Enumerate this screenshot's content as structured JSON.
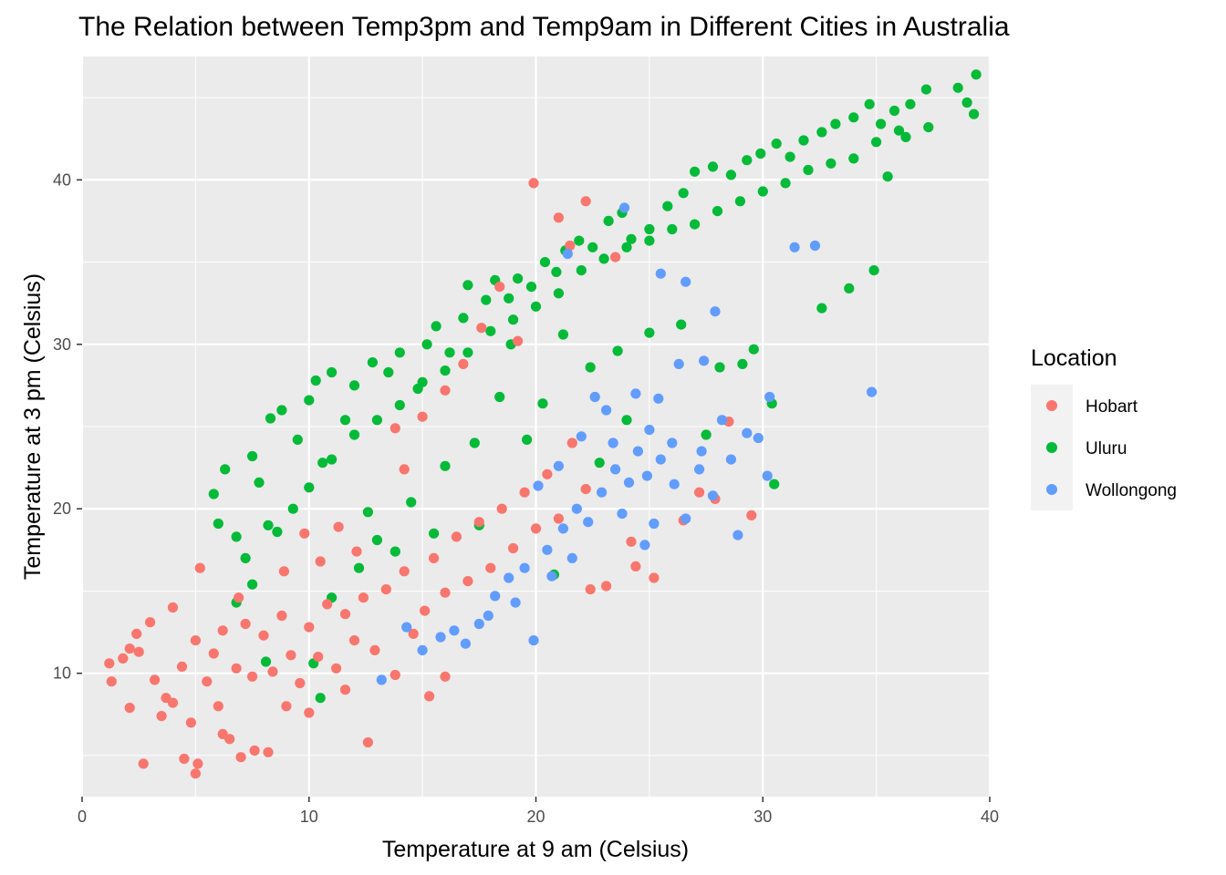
{
  "chart_data": {
    "type": "scatter",
    "title": "The Relation between Temp3pm and Temp9am in Different Cities in Australia",
    "xlabel": "Temperature at 9 am (Celsius)",
    "ylabel": "Temperature at 3 pm (Celsius)",
    "xlim": [
      0,
      40
    ],
    "ylim": [
      2.5,
      47.5
    ],
    "x_ticks": [
      0,
      10,
      20,
      30,
      40
    ],
    "x_tick_labels": [
      "0",
      "10",
      "20",
      "30",
      "40"
    ],
    "y_ticks": [
      10,
      20,
      30,
      40
    ],
    "y_tick_labels": [
      "10",
      "20",
      "30",
      "40"
    ],
    "grid": true,
    "legend_position": "right",
    "legend_title": "Location",
    "series": [
      {
        "name": "Hobart",
        "color": "#F8766D",
        "points": [
          [
            1.2,
            10.6
          ],
          [
            1.3,
            9.5
          ],
          [
            1.8,
            10.9
          ],
          [
            2.1,
            11.5
          ],
          [
            2.1,
            7.9
          ],
          [
            2.7,
            4.5
          ],
          [
            3.5,
            7.4
          ],
          [
            4.0,
            8.2
          ],
          [
            4.0,
            14.0
          ],
          [
            4.5,
            4.8
          ],
          [
            5.0,
            3.9
          ],
          [
            5.1,
            4.5
          ],
          [
            4.8,
            7.0
          ],
          [
            5.2,
            16.4
          ],
          [
            5.5,
            9.5
          ],
          [
            6.0,
            8.0
          ],
          [
            6.5,
            6.0
          ],
          [
            7.0,
            4.9
          ],
          [
            7.6,
            5.3
          ],
          [
            8.2,
            5.2
          ],
          [
            6.2,
            12.6
          ],
          [
            5.8,
            11.2
          ],
          [
            6.8,
            10.3
          ],
          [
            7.2,
            13.0
          ],
          [
            7.5,
            9.8
          ],
          [
            8.0,
            12.3
          ],
          [
            8.4,
            10.1
          ],
          [
            8.8,
            13.5
          ],
          [
            9.2,
            11.1
          ],
          [
            9.6,
            9.4
          ],
          [
            10.0,
            12.8
          ],
          [
            10.4,
            11.0
          ],
          [
            10.8,
            14.2
          ],
          [
            11.2,
            10.3
          ],
          [
            11.6,
            13.6
          ],
          [
            12.0,
            12.0
          ],
          [
            12.4,
            14.6
          ],
          [
            12.9,
            11.4
          ],
          [
            13.4,
            15.1
          ],
          [
            13.8,
            9.9
          ],
          [
            14.2,
            16.2
          ],
          [
            14.6,
            12.4
          ],
          [
            15.1,
            13.8
          ],
          [
            15.5,
            17.0
          ],
          [
            16.0,
            14.9
          ],
          [
            16.5,
            18.3
          ],
          [
            17.0,
            15.6
          ],
          [
            17.5,
            19.2
          ],
          [
            18.0,
            16.4
          ],
          [
            18.5,
            20.0
          ],
          [
            19.0,
            17.6
          ],
          [
            19.5,
            21.0
          ],
          [
            20.0,
            18.8
          ],
          [
            20.5,
            22.1
          ],
          [
            21.0,
            19.4
          ],
          [
            21.6,
            24.0
          ],
          [
            22.2,
            21.2
          ],
          [
            13.8,
            24.9
          ],
          [
            14.2,
            22.4
          ],
          [
            15.0,
            25.6
          ],
          [
            16.0,
            27.2
          ],
          [
            16.8,
            28.8
          ],
          [
            17.6,
            31.0
          ],
          [
            18.4,
            33.5
          ],
          [
            19.2,
            30.2
          ],
          [
            19.9,
            39.8
          ],
          [
            21.0,
            37.7
          ],
          [
            22.2,
            38.7
          ],
          [
            21.5,
            36.0
          ],
          [
            23.5,
            35.3
          ],
          [
            15.3,
            8.6
          ],
          [
            16.0,
            9.8
          ],
          [
            12.6,
            5.8
          ],
          [
            10.0,
            7.6
          ],
          [
            11.6,
            9.0
          ],
          [
            9.0,
            8.0
          ],
          [
            6.2,
            6.3
          ],
          [
            3.7,
            8.5
          ],
          [
            2.5,
            11.3
          ],
          [
            3.0,
            13.1
          ],
          [
            22.4,
            15.1
          ],
          [
            23.1,
            15.3
          ],
          [
            24.2,
            18.0
          ],
          [
            24.4,
            16.5
          ],
          [
            25.2,
            15.8
          ],
          [
            27.9,
            20.6
          ],
          [
            28.5,
            25.3
          ],
          [
            29.5,
            19.6
          ],
          [
            26.5,
            19.3
          ],
          [
            27.2,
            21.0
          ],
          [
            8.9,
            16.2
          ],
          [
            9.8,
            18.5
          ],
          [
            10.5,
            16.8
          ],
          [
            11.3,
            18.9
          ],
          [
            12.1,
            17.4
          ],
          [
            6.9,
            14.6
          ],
          [
            5.0,
            12.0
          ],
          [
            4.4,
            10.4
          ],
          [
            3.2,
            9.6
          ],
          [
            2.4,
            12.4
          ]
        ]
      },
      {
        "name": "Uluru",
        "color": "#00BA38",
        "points": [
          [
            5.8,
            20.9
          ],
          [
            6.0,
            19.1
          ],
          [
            6.3,
            22.4
          ],
          [
            6.8,
            18.3
          ],
          [
            7.5,
            23.2
          ],
          [
            7.8,
            21.6
          ],
          [
            8.2,
            19.0
          ],
          [
            8.3,
            25.5
          ],
          [
            8.8,
            26.0
          ],
          [
            9.5,
            24.2
          ],
          [
            10.0,
            26.6
          ],
          [
            10.3,
            27.8
          ],
          [
            10.6,
            22.8
          ],
          [
            11.0,
            28.3
          ],
          [
            11.6,
            25.4
          ],
          [
            12.0,
            27.5
          ],
          [
            12.8,
            28.9
          ],
          [
            13.5,
            28.3
          ],
          [
            14.0,
            29.5
          ],
          [
            14.8,
            27.3
          ],
          [
            15.2,
            30.0
          ],
          [
            15.6,
            31.1
          ],
          [
            16.2,
            29.5
          ],
          [
            16.8,
            31.6
          ],
          [
            17.0,
            33.6
          ],
          [
            17.8,
            32.7
          ],
          [
            18.2,
            33.9
          ],
          [
            18.8,
            32.8
          ],
          [
            19.2,
            34.0
          ],
          [
            19.8,
            33.5
          ],
          [
            20.4,
            35.0
          ],
          [
            20.9,
            34.4
          ],
          [
            21.3,
            35.7
          ],
          [
            21.9,
            36.3
          ],
          [
            22.5,
            35.9
          ],
          [
            23.2,
            37.5
          ],
          [
            23.8,
            38.0
          ],
          [
            24.2,
            36.4
          ],
          [
            25.0,
            37.0
          ],
          [
            25.8,
            38.4
          ],
          [
            26.5,
            39.2
          ],
          [
            27.0,
            40.5
          ],
          [
            27.8,
            40.8
          ],
          [
            28.6,
            40.3
          ],
          [
            29.3,
            41.2
          ],
          [
            29.9,
            41.6
          ],
          [
            30.6,
            42.2
          ],
          [
            31.2,
            41.4
          ],
          [
            31.8,
            42.4
          ],
          [
            32.6,
            42.9
          ],
          [
            33.2,
            43.4
          ],
          [
            34.0,
            43.8
          ],
          [
            34.7,
            44.6
          ],
          [
            35.2,
            43.4
          ],
          [
            35.8,
            44.2
          ],
          [
            36.5,
            44.6
          ],
          [
            37.2,
            45.5
          ],
          [
            38.6,
            45.6
          ],
          [
            39.0,
            44.7
          ],
          [
            39.4,
            46.4
          ],
          [
            39.3,
            44.0
          ],
          [
            37.3,
            43.2
          ],
          [
            36.3,
            42.6
          ],
          [
            35.5,
            40.2
          ],
          [
            34.9,
            34.5
          ],
          [
            33.8,
            33.4
          ],
          [
            32.6,
            32.2
          ],
          [
            30.4,
            26.4
          ],
          [
            30.5,
            21.5
          ],
          [
            29.1,
            28.8
          ],
          [
            28.1,
            28.6
          ],
          [
            29.6,
            29.7
          ],
          [
            27.5,
            24.5
          ],
          [
            26.4,
            31.2
          ],
          [
            25.0,
            30.7
          ],
          [
            23.6,
            29.6
          ],
          [
            22.4,
            28.6
          ],
          [
            20.3,
            26.4
          ],
          [
            18.4,
            26.8
          ],
          [
            17.3,
            24.0
          ],
          [
            16.0,
            22.6
          ],
          [
            14.5,
            20.4
          ],
          [
            13.0,
            18.1
          ],
          [
            12.2,
            16.4
          ],
          [
            11.0,
            14.6
          ],
          [
            10.2,
            10.6
          ],
          [
            8.1,
            10.7
          ],
          [
            10.5,
            8.5
          ],
          [
            7.5,
            15.4
          ],
          [
            6.8,
            14.3
          ],
          [
            7.2,
            17.0
          ],
          [
            8.6,
            18.6
          ],
          [
            9.3,
            20.0
          ],
          [
            10.0,
            21.3
          ],
          [
            11.0,
            23.0
          ],
          [
            12.0,
            24.5
          ],
          [
            13.0,
            25.4
          ],
          [
            14.0,
            26.3
          ],
          [
            15.0,
            27.7
          ],
          [
            16.0,
            28.4
          ],
          [
            17.0,
            29.5
          ],
          [
            18.0,
            30.8
          ],
          [
            19.0,
            31.5
          ],
          [
            20.0,
            32.3
          ],
          [
            21.0,
            33.1
          ],
          [
            22.0,
            34.5
          ],
          [
            23.0,
            35.2
          ],
          [
            24.0,
            35.9
          ],
          [
            25.0,
            36.3
          ],
          [
            26.0,
            37.0
          ],
          [
            27.0,
            37.3
          ],
          [
            28.0,
            38.1
          ],
          [
            29.0,
            38.7
          ],
          [
            30.0,
            39.3
          ],
          [
            31.0,
            39.8
          ],
          [
            32.0,
            40.6
          ],
          [
            33.0,
            41.0
          ],
          [
            34.0,
            41.3
          ],
          [
            35.0,
            42.3
          ],
          [
            36.0,
            43.0
          ],
          [
            20.8,
            16.0
          ],
          [
            24.0,
            25.4
          ],
          [
            22.8,
            22.8
          ],
          [
            19.6,
            24.2
          ],
          [
            17.5,
            19.0
          ],
          [
            15.5,
            18.5
          ],
          [
            13.8,
            17.4
          ],
          [
            12.6,
            19.8
          ],
          [
            21.2,
            30.6
          ],
          [
            18.9,
            30.0
          ]
        ]
      },
      {
        "name": "Wollongong",
        "color": "#619CFF",
        "points": [
          [
            13.2,
            9.6
          ],
          [
            14.3,
            12.8
          ],
          [
            15.0,
            11.4
          ],
          [
            16.4,
            12.6
          ],
          [
            17.5,
            13.0
          ],
          [
            18.2,
            14.7
          ],
          [
            18.8,
            15.8
          ],
          [
            19.5,
            16.4
          ],
          [
            19.9,
            12.0
          ],
          [
            20.5,
            17.5
          ],
          [
            21.2,
            18.8
          ],
          [
            21.8,
            20.0
          ],
          [
            22.3,
            19.2
          ],
          [
            22.9,
            21.0
          ],
          [
            23.5,
            22.4
          ],
          [
            24.1,
            21.6
          ],
          [
            24.5,
            23.5
          ],
          [
            25.0,
            24.8
          ],
          [
            25.5,
            23.0
          ],
          [
            26.1,
            21.5
          ],
          [
            26.6,
            19.4
          ],
          [
            27.2,
            22.4
          ],
          [
            27.8,
            20.8
          ],
          [
            28.2,
            25.4
          ],
          [
            28.9,
            18.4
          ],
          [
            29.3,
            24.6
          ],
          [
            29.8,
            24.3
          ],
          [
            30.2,
            22.0
          ],
          [
            30.3,
            26.8
          ],
          [
            34.8,
            27.1
          ],
          [
            27.4,
            29.0
          ],
          [
            26.3,
            28.8
          ],
          [
            25.4,
            26.7
          ],
          [
            24.4,
            27.0
          ],
          [
            23.1,
            26.0
          ],
          [
            22.0,
            24.4
          ],
          [
            21.0,
            22.6
          ],
          [
            20.1,
            21.4
          ],
          [
            23.9,
            38.3
          ],
          [
            21.4,
            35.5
          ],
          [
            23.8,
            19.7
          ],
          [
            25.2,
            19.1
          ],
          [
            21.6,
            17.0
          ],
          [
            20.7,
            15.9
          ],
          [
            19.1,
            14.3
          ],
          [
            17.9,
            13.5
          ],
          [
            16.9,
            11.8
          ],
          [
            15.8,
            12.2
          ],
          [
            24.8,
            17.8
          ],
          [
            27.3,
            23.5
          ],
          [
            26.0,
            24.0
          ],
          [
            24.9,
            22.0
          ],
          [
            23.4,
            24.0
          ],
          [
            22.6,
            26.8
          ],
          [
            28.6,
            23.0
          ],
          [
            31.4,
            35.9
          ],
          [
            32.3,
            36.0
          ],
          [
            26.6,
            33.8
          ],
          [
            27.9,
            32.0
          ],
          [
            25.5,
            34.3
          ]
        ]
      }
    ]
  }
}
